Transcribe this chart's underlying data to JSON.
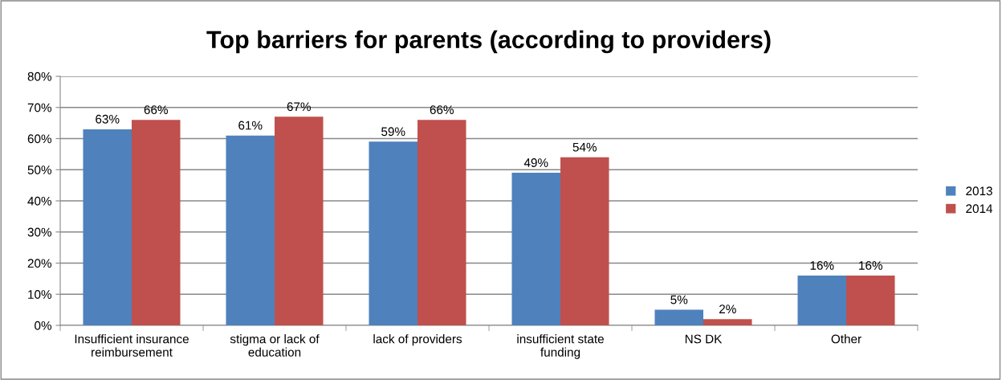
{
  "chart_data": {
    "type": "bar",
    "title": "Top barriers for parents (according to providers)",
    "categories": [
      "Insufficient insurance\nreimbursement",
      "stigma or lack of\neducation",
      "lack of providers",
      "insufficient state\nfunding",
      "NS DK",
      "Other"
    ],
    "series": [
      {
        "name": "2013",
        "color": "#4f81bd",
        "values": [
          63,
          61,
          59,
          49,
          5,
          16
        ],
        "value_labels": [
          "63%",
          "61%",
          "59%",
          "49%",
          "5%",
          "16%"
        ]
      },
      {
        "name": "2014",
        "color": "#c0504d",
        "values": [
          66,
          67,
          66,
          54,
          2,
          16
        ],
        "value_labels": [
          "66%",
          "67%",
          "66%",
          "54%",
          "2%",
          "16%"
        ]
      }
    ],
    "ylim": [
      0,
      80
    ],
    "yticks": [
      {
        "value": 0,
        "label": "0%"
      },
      {
        "value": 10,
        "label": "10%"
      },
      {
        "value": 20,
        "label": "20%"
      },
      {
        "value": 30,
        "label": "30%"
      },
      {
        "value": 40,
        "label": "40%"
      },
      {
        "value": 50,
        "label": "50%"
      },
      {
        "value": 60,
        "label": "60%"
      },
      {
        "value": 70,
        "label": "70%"
      },
      {
        "value": 80,
        "label": "80%"
      }
    ],
    "grid": "y",
    "legend": "right"
  }
}
